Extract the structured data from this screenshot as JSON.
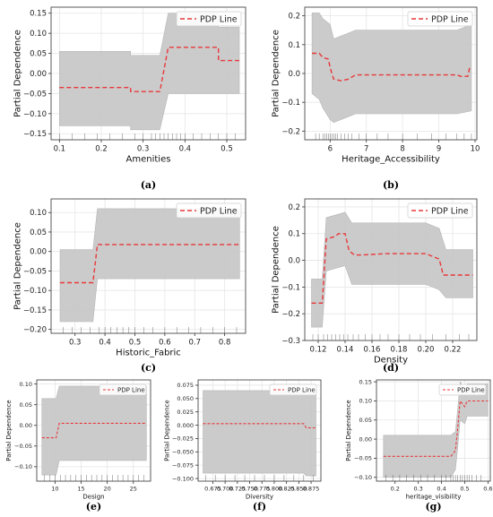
{
  "figure": {
    "legend_label": "PDP Line",
    "band_color": "#c8c8c8",
    "line_color": "#e8383b",
    "legend_position": "top-right"
  },
  "chart_data": [
    {
      "type": "line",
      "caption": "(a)",
      "xlabel": "Amenities",
      "ylabel": "Partial Dependence",
      "xlim": [
        0.08,
        0.545
      ],
      "ylim": [
        -0.165,
        0.165
      ],
      "xticks": [
        0.1,
        0.2,
        0.3,
        0.4,
        0.5
      ],
      "yticks": [
        -0.15,
        -0.1,
        -0.05,
        0,
        0.05,
        0.1,
        0.15
      ],
      "xtick_labels": [
        "0.1",
        "0.2",
        "0.3",
        "0.4",
        "0.5"
      ],
      "ytick_labels": [
        "−0.15",
        "−0.10",
        "−0.05",
        "0.00",
        "0.05",
        "0.10",
        "0.15"
      ],
      "series": [
        {
          "name": "PDP Line",
          "x": [
            0.1,
            0.27,
            0.27,
            0.34,
            0.36,
            0.48,
            0.48,
            0.53
          ],
          "y": [
            -0.035,
            -0.035,
            -0.045,
            -0.045,
            0.065,
            0.065,
            0.032,
            0.032
          ]
        }
      ],
      "band_x": [
        0.1,
        0.27,
        0.27,
        0.34,
        0.36,
        0.48,
        0.48,
        0.53
      ],
      "band_lower": [
        -0.13,
        -0.13,
        -0.14,
        -0.14,
        -0.05,
        -0.05,
        -0.05,
        -0.05
      ],
      "band_upper": [
        0.055,
        0.055,
        0.045,
        0.045,
        0.15,
        0.15,
        0.115,
        0.115
      ],
      "rug": [
        0.1,
        0.13,
        0.16,
        0.19,
        0.22,
        0.25,
        0.28,
        0.3,
        0.32,
        0.33,
        0.34,
        0.35,
        0.36,
        0.37,
        0.38,
        0.39,
        0.4,
        0.42,
        0.44,
        0.46,
        0.48,
        0.5,
        0.52
      ],
      "fontsize": 8.5
    },
    {
      "type": "line",
      "caption": "(b)",
      "xlabel": "Heritage_Accessibility",
      "ylabel": "Partial Dependence",
      "xlim": [
        5.3,
        10.05
      ],
      "ylim": [
        -0.23,
        0.23
      ],
      "xticks": [
        6,
        7,
        8,
        9,
        10
      ],
      "yticks": [
        -0.2,
        -0.1,
        0,
        0.1,
        0.2
      ],
      "xtick_labels": [
        "6",
        "7",
        "8",
        "9",
        "10"
      ],
      "ytick_labels": [
        "−0.2",
        "−0.1",
        "0.0",
        "0.1",
        "0.2"
      ],
      "series": [
        {
          "name": "PDP Line",
          "x": [
            5.5,
            5.7,
            5.8,
            5.95,
            6.0,
            6.1,
            6.3,
            6.5,
            6.7,
            9.5,
            9.6,
            9.8,
            9.85,
            9.9
          ],
          "y": [
            0.07,
            0.07,
            0.055,
            0.05,
            0.02,
            -0.02,
            -0.025,
            -0.02,
            -0.005,
            -0.005,
            -0.01,
            -0.01,
            0.02,
            0.02
          ]
        }
      ],
      "band_x": [
        5.5,
        5.7,
        5.8,
        6.0,
        6.1,
        6.3,
        6.5,
        6.7,
        9.5,
        9.9
      ],
      "band_lower": [
        -0.07,
        -0.09,
        -0.12,
        -0.16,
        -0.17,
        -0.16,
        -0.15,
        -0.14,
        -0.14,
        -0.13
      ],
      "band_upper": [
        0.21,
        0.21,
        0.19,
        0.17,
        0.12,
        0.13,
        0.14,
        0.15,
        0.15,
        0.17
      ],
      "rug": [
        5.6,
        5.7,
        5.8,
        5.85,
        5.9,
        5.95,
        6.0,
        6.05,
        6.1,
        6.15,
        6.2,
        6.3,
        6.4,
        6.5,
        6.6,
        6.8,
        7.0,
        7.3,
        7.6,
        8.0,
        8.4,
        8.8,
        9.2,
        9.5,
        9.7,
        9.9
      ],
      "fontsize": 8.5
    },
    {
      "type": "line",
      "caption": "(c)",
      "xlabel": "Historic_Fabric",
      "ylabel": "Partial Dependence",
      "xlim": [
        0.22,
        0.87
      ],
      "ylim": [
        -0.21,
        0.135
      ],
      "xticks": [
        0.3,
        0.4,
        0.5,
        0.6,
        0.7,
        0.8
      ],
      "yticks": [
        -0.2,
        -0.15,
        -0.1,
        -0.05,
        0,
        0.05,
        0.1
      ],
      "xtick_labels": [
        "0.3",
        "0.4",
        "0.5",
        "0.6",
        "0.7",
        "0.8"
      ],
      "ytick_labels": [
        "−0.20",
        "−0.15",
        "−0.10",
        "−0.05",
        "0.00",
        "0.05",
        "0.10"
      ],
      "series": [
        {
          "name": "PDP Line",
          "x": [
            0.25,
            0.36,
            0.375,
            0.85
          ],
          "y": [
            -0.08,
            -0.08,
            0.018,
            0.018
          ]
        }
      ],
      "band_x": [
        0.25,
        0.36,
        0.375,
        0.85
      ],
      "band_lower": [
        -0.18,
        -0.18,
        -0.07,
        -0.07
      ],
      "band_upper": [
        0.005,
        0.005,
        0.11,
        0.11
      ],
      "rug": [
        0.26,
        0.29,
        0.32,
        0.35,
        0.38,
        0.4,
        0.42,
        0.44,
        0.46,
        0.48,
        0.5,
        0.53,
        0.56,
        0.6,
        0.64,
        0.68,
        0.72,
        0.76,
        0.8,
        0.84
      ],
      "fontsize": 8.5
    },
    {
      "type": "line",
      "caption": "(d)",
      "xlabel": "Density",
      "ylabel": "Partial Dependence",
      "xlim": [
        0.11,
        0.238
      ],
      "ylim": [
        -0.3,
        0.23
      ],
      "xticks": [
        0.12,
        0.14,
        0.16,
        0.18,
        0.2,
        0.22
      ],
      "yticks": [
        -0.3,
        -0.2,
        -0.1,
        0,
        0.1,
        0.2
      ],
      "xtick_labels": [
        "0.12",
        "0.14",
        "0.16",
        "0.18",
        "0.20",
        "0.22"
      ],
      "ytick_labels": [
        "−0.3",
        "−0.2",
        "−0.1",
        "0.0",
        "0.1",
        "0.2"
      ],
      "series": [
        {
          "name": "PDP Line",
          "x": [
            0.115,
            0.123,
            0.126,
            0.133,
            0.135,
            0.14,
            0.143,
            0.147,
            0.152,
            0.17,
            0.2,
            0.21,
            0.213,
            0.235
          ],
          "y": [
            -0.16,
            -0.16,
            0.08,
            0.09,
            0.1,
            0.1,
            0.035,
            0.02,
            0.02,
            0.025,
            0.025,
            0.005,
            -0.055,
            -0.055
          ]
        }
      ],
      "band_x": [
        0.115,
        0.123,
        0.126,
        0.133,
        0.14,
        0.145,
        0.17,
        0.2,
        0.21,
        0.215,
        0.235
      ],
      "band_lower": [
        -0.25,
        -0.25,
        -0.04,
        -0.03,
        -0.02,
        -0.09,
        -0.09,
        -0.09,
        -0.11,
        -0.14,
        -0.14
      ],
      "band_upper": [
        -0.07,
        -0.07,
        0.16,
        0.17,
        0.18,
        0.14,
        0.14,
        0.14,
        0.12,
        0.04,
        0.04
      ],
      "rug": [
        0.116,
        0.12,
        0.124,
        0.127,
        0.13,
        0.133,
        0.136,
        0.139,
        0.142,
        0.146,
        0.15,
        0.155,
        0.16,
        0.166,
        0.172,
        0.18,
        0.188,
        0.196,
        0.205,
        0.215,
        0.225,
        0.232
      ],
      "fontsize": 8.5
    },
    {
      "type": "line",
      "caption": "(e)",
      "xlabel": "Design",
      "ylabel": "Partial Dependence",
      "xlim": [
        6.5,
        28.3
      ],
      "ylim": [
        -0.135,
        0.11
      ],
      "xticks": [
        10,
        15,
        20,
        25
      ],
      "yticks": [
        -0.1,
        -0.05,
        0,
        0.05,
        0.1
      ],
      "xtick_labels": [
        "10",
        "15",
        "20",
        "25"
      ],
      "ytick_labels": [
        "−0.10",
        "−0.05",
        "0.00",
        "0.05",
        "0.10"
      ],
      "series": [
        {
          "name": "PDP Line",
          "x": [
            7.5,
            10.2,
            10.8,
            27.5
          ],
          "y": [
            -0.03,
            -0.03,
            0.005,
            0.005
          ]
        }
      ],
      "band_x": [
        7.5,
        10.2,
        10.8,
        27.5
      ],
      "band_lower": [
        -0.12,
        -0.12,
        -0.085,
        -0.085
      ],
      "band_upper": [
        0.065,
        0.065,
        0.095,
        0.095
      ],
      "rug": [
        8,
        9,
        10,
        11,
        12,
        13,
        14,
        15,
        16,
        17,
        18,
        19,
        20,
        21,
        22,
        23,
        24,
        25,
        26,
        27
      ],
      "fontsize": 6.5
    },
    {
      "type": "line",
      "caption": "(f)",
      "xlabel": "Diversity",
      "ylabel": "Partial Dependence",
      "xlim": [
        0.645,
        0.895
      ],
      "ylim": [
        -0.105,
        0.085
      ],
      "xticks": [
        0.675,
        0.7,
        0.725,
        0.75,
        0.775,
        0.8,
        0.825,
        0.85,
        0.875
      ],
      "yticks": [
        -0.1,
        -0.075,
        -0.05,
        -0.025,
        0,
        0.025,
        0.05,
        0.075
      ],
      "xtick_labels": [
        "0.675",
        "0.700",
        "0.725",
        "0.750",
        "0.775",
        "0.800",
        "0.825",
        "0.850",
        "0.875"
      ],
      "ytick_labels": [
        "−0.100",
        "−0.075",
        "−0.050",
        "−0.025",
        "0.000",
        "0.025",
        "0.050",
        "0.075"
      ],
      "series": [
        {
          "name": "PDP Line",
          "x": [
            0.655,
            0.86,
            0.865,
            0.885
          ],
          "y": [
            0.003,
            0.003,
            -0.005,
            -0.005
          ]
        }
      ],
      "band_x": [
        0.655,
        0.86,
        0.865,
        0.885
      ],
      "band_lower": [
        -0.09,
        -0.09,
        -0.095,
        -0.095
      ],
      "band_upper": [
        0.065,
        0.065,
        0.06,
        0.06
      ],
      "rug": [
        0.66,
        0.68,
        0.7,
        0.72,
        0.74,
        0.76,
        0.78,
        0.8,
        0.82,
        0.84,
        0.86,
        0.88
      ],
      "fontsize": 6.5
    },
    {
      "type": "line",
      "caption": "(g)",
      "xlabel": "heritage_visibility",
      "ylabel": "Partial Dependence",
      "xlim": [
        0.12,
        0.61
      ],
      "ylim": [
        -0.11,
        0.155
      ],
      "xticks": [
        0.2,
        0.3,
        0.4,
        0.5,
        0.6
      ],
      "yticks": [
        -0.1,
        -0.05,
        0,
        0.05,
        0.1,
        0.15
      ],
      "xtick_labels": [
        "0.2",
        "0.3",
        "0.4",
        "0.5",
        "0.6"
      ],
      "ytick_labels": [
        "−0.10",
        "−0.05",
        "0.00",
        "0.05",
        "0.10",
        "0.15"
      ],
      "series": [
        {
          "name": "PDP Line",
          "x": [
            0.15,
            0.44,
            0.46,
            0.47,
            0.48,
            0.5,
            0.51,
            0.6
          ],
          "y": [
            -0.045,
            -0.045,
            -0.03,
            0.03,
            0.1,
            0.085,
            0.1,
            0.1
          ]
        }
      ],
      "band_x": [
        0.15,
        0.44,
        0.46,
        0.47,
        0.48,
        0.5,
        0.51,
        0.6
      ],
      "band_lower": [
        -0.1,
        -0.1,
        -0.08,
        -0.02,
        0.05,
        0.04,
        0.06,
        0.06
      ],
      "band_upper": [
        0.01,
        0.01,
        0.02,
        0.08,
        0.15,
        0.13,
        0.145,
        0.145
      ],
      "rug": [
        0.16,
        0.19,
        0.22,
        0.25,
        0.28,
        0.31,
        0.34,
        0.37,
        0.4,
        0.42,
        0.44,
        0.45,
        0.46,
        0.47,
        0.48,
        0.49,
        0.5,
        0.51,
        0.52,
        0.53,
        0.55,
        0.57
      ],
      "fontsize": 6.5
    }
  ]
}
